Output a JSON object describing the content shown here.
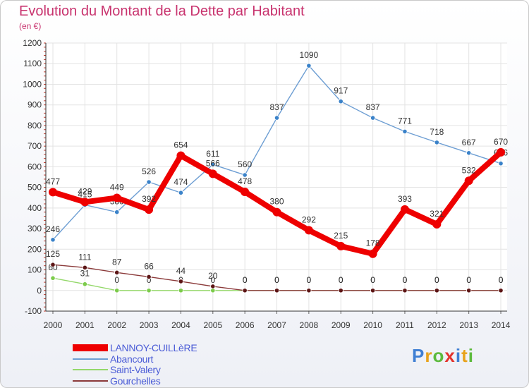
{
  "title": "Evolution du Montant de la Dette par Habitant",
  "subtitle": "(en €)",
  "brand": {
    "name": "Proxiti",
    "letter_colors": [
      "#3f7fd3",
      "#e8a21b",
      "#5cba3c",
      "#e3322c",
      "#3f7fd3",
      "#e8a21b",
      "#5cba3c"
    ]
  },
  "chart_data": {
    "type": "line",
    "categories": [
      "2000",
      "2001",
      "2002",
      "2003",
      "2004",
      "2005",
      "2006",
      "2007",
      "2008",
      "2009",
      "2010",
      "2011",
      "2012",
      "2013",
      "2014"
    ],
    "ylim": [
      -100,
      1200
    ],
    "yticks": [
      -100,
      0,
      100,
      200,
      300,
      400,
      500,
      600,
      700,
      800,
      900,
      1000,
      1100,
      1200
    ],
    "grid": true,
    "legend_position": "bottom-left",
    "series": [
      {
        "name": "Abancourt",
        "color": "#6d9ed3",
        "point_color": "#3a82c9",
        "values": [
          246,
          415,
          380,
          526,
          474,
          611,
          560,
          837,
          1090,
          917,
          837,
          771,
          718,
          667,
          616
        ],
        "labels": [
          "246",
          "415",
          "380",
          "526",
          "474",
          "611",
          "560",
          "837",
          "1090",
          "917",
          "837",
          "771",
          "718",
          "667",
          "616"
        ]
      },
      {
        "name": "Saint-Valery",
        "color": "#94d86a",
        "point_color": "#7ccb4b",
        "values": [
          60,
          31,
          0,
          0,
          0,
          0,
          0,
          0,
          0,
          0,
          0,
          0,
          0,
          0,
          0
        ],
        "labels": [
          "60",
          "31",
          "0",
          "0",
          "0",
          "0",
          "0",
          "0",
          "0",
          "0",
          "0",
          "0",
          "0",
          "0",
          "0"
        ]
      },
      {
        "name": "Gourchelles",
        "color": "#8b3a3a",
        "point_color": "#5c1515",
        "values": [
          125,
          111,
          87,
          66,
          44,
          20,
          0,
          0,
          0,
          0,
          0,
          0,
          0,
          0,
          0
        ],
        "labels": [
          "125",
          "111",
          "87",
          "66",
          "44",
          "20",
          "0",
          "0",
          "0",
          "0",
          "0",
          "0",
          "0",
          "0",
          "0"
        ]
      },
      {
        "name": "LANNOY-CUILLèRE",
        "color": "#ee0000",
        "point_color": "#ee0000",
        "values": [
          477,
          429,
          449,
          392,
          654,
          566,
          478,
          380,
          292,
          215,
          178,
          393,
          321,
          532,
          670
        ],
        "labels": [
          "477",
          "429",
          "449",
          "392",
          "654",
          "566",
          "478",
          "380",
          "292",
          "215",
          "178",
          "393",
          "321",
          "532",
          "670"
        ]
      }
    ]
  }
}
